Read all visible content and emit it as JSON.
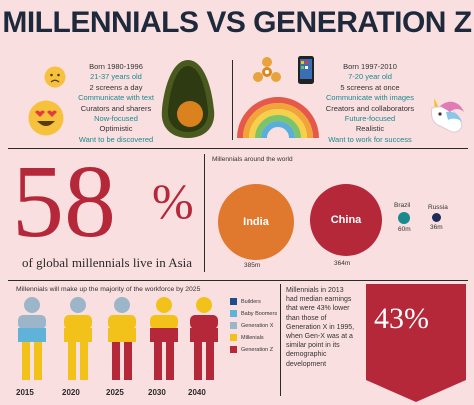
{
  "title": "MILLENNIALS VS GENERATION Z",
  "millennials": {
    "lines": [
      "Born 1980-1996",
      "21-37 years old",
      "2 screens a day",
      "Communicate with text",
      "Curators and sharers",
      "Now-focused",
      "Optimistic",
      "Want to be discovered"
    ]
  },
  "genz": {
    "lines": [
      "Born 1997-2010",
      "7-20 year old",
      "5 screens at once",
      "Communicate with images",
      "Creators and collaborators",
      "Future-focused",
      "Realistic",
      "Want to work for success"
    ]
  },
  "asia": {
    "number": "58",
    "percent_sign": "%",
    "caption": "of global millennials live in Asia"
  },
  "world": {
    "title": "Millennials around the world",
    "countries": [
      {
        "name": "India",
        "value": "385m"
      },
      {
        "name": "China",
        "value": "364m"
      },
      {
        "name": "Brazil",
        "value": "60m"
      },
      {
        "name": "Russia",
        "value": "36m"
      }
    ]
  },
  "workforce": {
    "title": "Millennials will make up the majority of the workforce by 2025",
    "years": [
      "2015",
      "2020",
      "2025",
      "2030",
      "2040"
    ],
    "legend": [
      {
        "label": "Builders",
        "color": "#1f4c8a"
      },
      {
        "label": "Baby Boomers",
        "color": "#5fb3d9"
      },
      {
        "label": "Generation X",
        "color": "#9bb6c9"
      },
      {
        "label": "Millenials",
        "color": "#f2c21b"
      },
      {
        "label": "Generation Z",
        "color": "#b5283a"
      }
    ]
  },
  "earnings": {
    "text": "Millennials in 2013 had median earnings that were 43% lower than those of Generation X in 1995, when Gen-X was at a similar point in its demographic development",
    "percent": "43%"
  },
  "colors": {
    "accent": "#b5283a",
    "teal": "#1a8a8f",
    "background": "#f9dfe0"
  }
}
